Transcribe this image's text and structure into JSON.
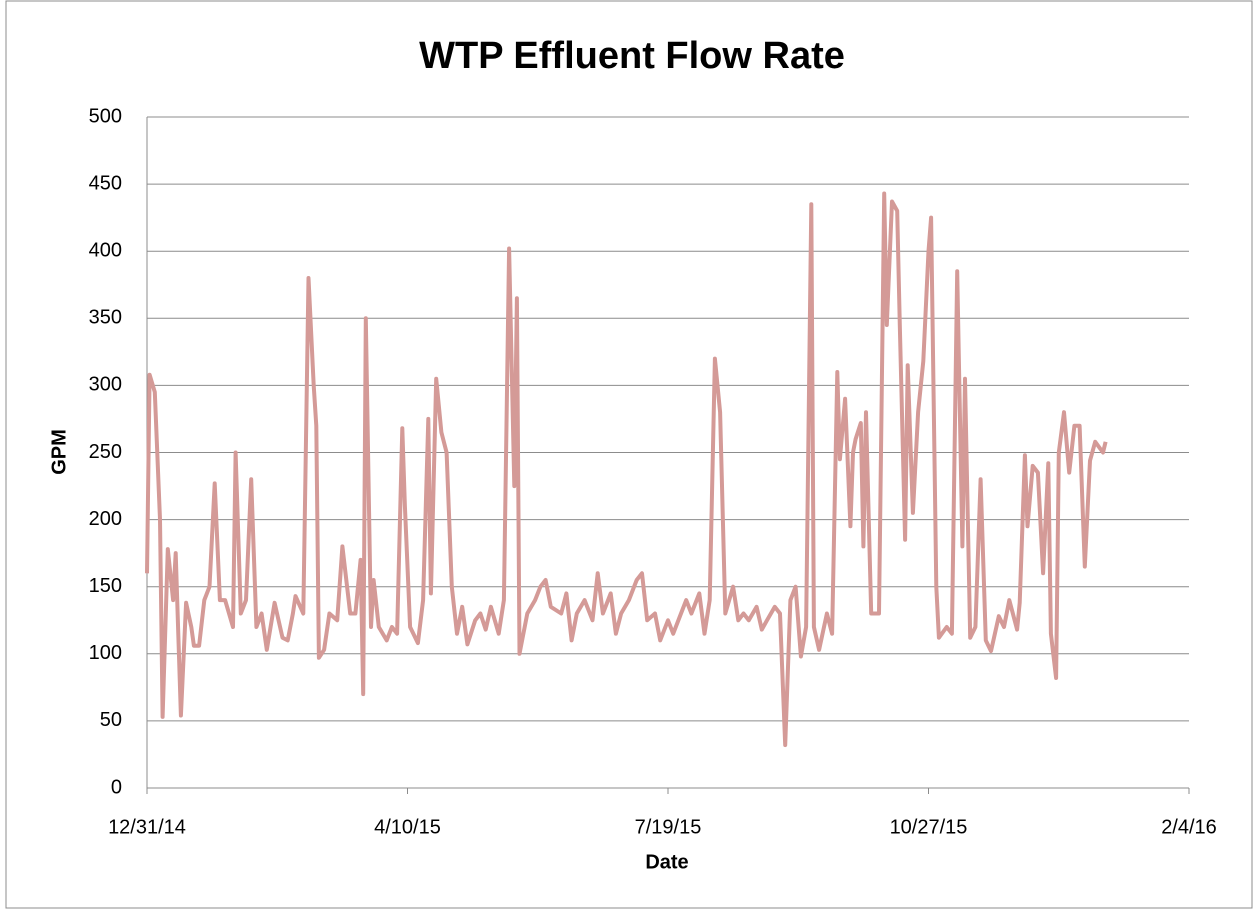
{
  "chart_data": {
    "type": "line",
    "title": "WTP Effluent Flow Rate",
    "xlabel": "Date",
    "ylabel": "GPM",
    "color": "#d49a97",
    "grid": true,
    "xlim": [
      "12/31/14",
      "2/4/16"
    ],
    "xticks": [
      "12/31/14",
      "4/10/15",
      "7/19/15",
      "10/27/15",
      "2/4/16"
    ],
    "ylim": [
      0,
      500
    ],
    "yticks": [
      0,
      50,
      100,
      150,
      200,
      250,
      300,
      350,
      400,
      450,
      500
    ],
    "x": [
      "12/31/14",
      "1/1/15",
      "1/3/15",
      "1/5/15",
      "1/6/15",
      "1/8/15",
      "1/10/15",
      "1/11/15",
      "1/13/15",
      "1/15/15",
      "1/17/15",
      "1/18/15",
      "1/20/15",
      "1/22/15",
      "1/24/15",
      "1/26/15",
      "1/28/15",
      "1/30/15",
      "2/2/15",
      "2/3/15",
      "2/5/15",
      "2/7/15",
      "2/9/15",
      "2/11/15",
      "2/13/15",
      "2/15/15",
      "2/18/15",
      "2/21/15",
      "2/23/15",
      "2/25/15",
      "2/26/15",
      "3/1/15",
      "3/3/15",
      "3/5/15",
      "3/6/15",
      "3/7/15",
      "3/9/15",
      "3/11/15",
      "3/14/15",
      "3/16/15",
      "3/19/15",
      "3/21/15",
      "3/23/15",
      "3/24/15",
      "3/25/15",
      "3/27/15",
      "3/28/15",
      "3/30/15",
      "4/2/15",
      "4/4/15",
      "4/6/15",
      "4/8/15",
      "4/9/15",
      "4/11/15",
      "4/14/15",
      "4/16/15",
      "4/18/15",
      "4/19/15",
      "4/21/15",
      "4/23/15",
      "4/25/15",
      "4/27/15",
      "4/29/15",
      "5/1/15",
      "5/3/15",
      "5/6/15",
      "5/8/15",
      "5/10/15",
      "5/12/15",
      "5/15/15",
      "5/17/15",
      "5/19/15",
      "5/21/15",
      "5/22/15",
      "5/23/15",
      "5/26/15",
      "5/29/15",
      "5/31/15",
      "6/2/15",
      "6/4/15",
      "6/8/15",
      "6/10/15",
      "6/12/15",
      "6/14/15",
      "6/17/15",
      "6/20/15",
      "6/22/15",
      "6/24/15",
      "6/27/15",
      "6/29/15",
      "7/1/15",
      "7/4/15",
      "7/7/15",
      "7/9/15",
      "7/11/15",
      "7/14/15",
      "7/16/15",
      "7/19/15",
      "7/21/15",
      "7/24/15",
      "7/26/15",
      "7/28/15",
      "7/31/15",
      "8/2/15",
      "8/4/15",
      "8/6/15",
      "8/8/15",
      "8/10/15",
      "8/13/15",
      "8/15/15",
      "8/17/15",
      "8/19/15",
      "8/22/15",
      "8/24/15",
      "8/26/15",
      "8/29/15",
      "8/31/15",
      "9/2/15",
      "9/4/15",
      "9/6/15",
      "9/8/15",
      "9/10/15",
      "9/12/15",
      "9/13/15",
      "9/15/15",
      "9/18/15",
      "9/20/15",
      "9/22/15",
      "9/23/15",
      "9/25/15",
      "9/27/15",
      "9/28/15",
      "9/29/15",
      "10/1/15",
      "10/2/15",
      "10/3/15",
      "10/5/15",
      "10/8/15",
      "10/10/15",
      "10/11/15",
      "10/13/15",
      "10/15/15",
      "10/16/15",
      "10/18/15",
      "10/19/15",
      "10/21/15",
      "10/23/15",
      "10/25/15",
      "10/27/15",
      "10/28/15",
      "10/30/15",
      "10/31/15",
      "11/3/15",
      "11/5/15",
      "11/7/15",
      "11/9/15",
      "11/10/15",
      "11/12/15",
      "11/14/15",
      "11/16/15",
      "11/18/15",
      "11/20/15",
      "11/23/15",
      "11/25/15",
      "11/27/15",
      "11/30/15",
      "12/1/15",
      "12/3/15",
      "12/4/15",
      "12/6/15",
      "12/8/15",
      "12/10/15",
      "12/12/15",
      "12/13/15",
      "12/15/15",
      "12/16/15",
      "12/18/15",
      "12/20/15",
      "12/22/15",
      "12/24/15",
      "12/26/15",
      "12/28/15",
      "12/30/15",
      "1/2/16",
      "1/3/16"
    ],
    "values": [
      160,
      308,
      295,
      200,
      53,
      178,
      140,
      175,
      54,
      138,
      120,
      106,
      106,
      140,
      150,
      227,
      140,
      140,
      120,
      250,
      130,
      140,
      230,
      120,
      130,
      103,
      138,
      112,
      110,
      130,
      143,
      130,
      380,
      300,
      270,
      97,
      103,
      130,
      125,
      180,
      130,
      130,
      170,
      70,
      350,
      120,
      155,
      120,
      110,
      120,
      115,
      268,
      210,
      120,
      108,
      140,
      275,
      145,
      305,
      265,
      250,
      150,
      115,
      135,
      107,
      125,
      130,
      118,
      135,
      115,
      140,
      402,
      225,
      365,
      100,
      130,
      140,
      150,
      155,
      135,
      130,
      145,
      110,
      130,
      140,
      125,
      160,
      130,
      145,
      115,
      130,
      140,
      155,
      160,
      125,
      130,
      110,
      125,
      115,
      130,
      140,
      130,
      145,
      115,
      140,
      320,
      280,
      130,
      150,
      125,
      130,
      125,
      135,
      118,
      125,
      135,
      130,
      32,
      140,
      150,
      98,
      120,
      435,
      120,
      103,
      130,
      115,
      310,
      245,
      290,
      195,
      250,
      260,
      272,
      180,
      280,
      130,
      130,
      443,
      345,
      437,
      430,
      345,
      185,
      315,
      205,
      280,
      318,
      400,
      425,
      150,
      112,
      120,
      115,
      385,
      180,
      305,
      112,
      120,
      230,
      110,
      102,
      128,
      120,
      140,
      118,
      138,
      248,
      195,
      240,
      235,
      160,
      242,
      115,
      82,
      250,
      280,
      235,
      270,
      270,
      165,
      244,
      258,
      250,
      258
    ]
  }
}
